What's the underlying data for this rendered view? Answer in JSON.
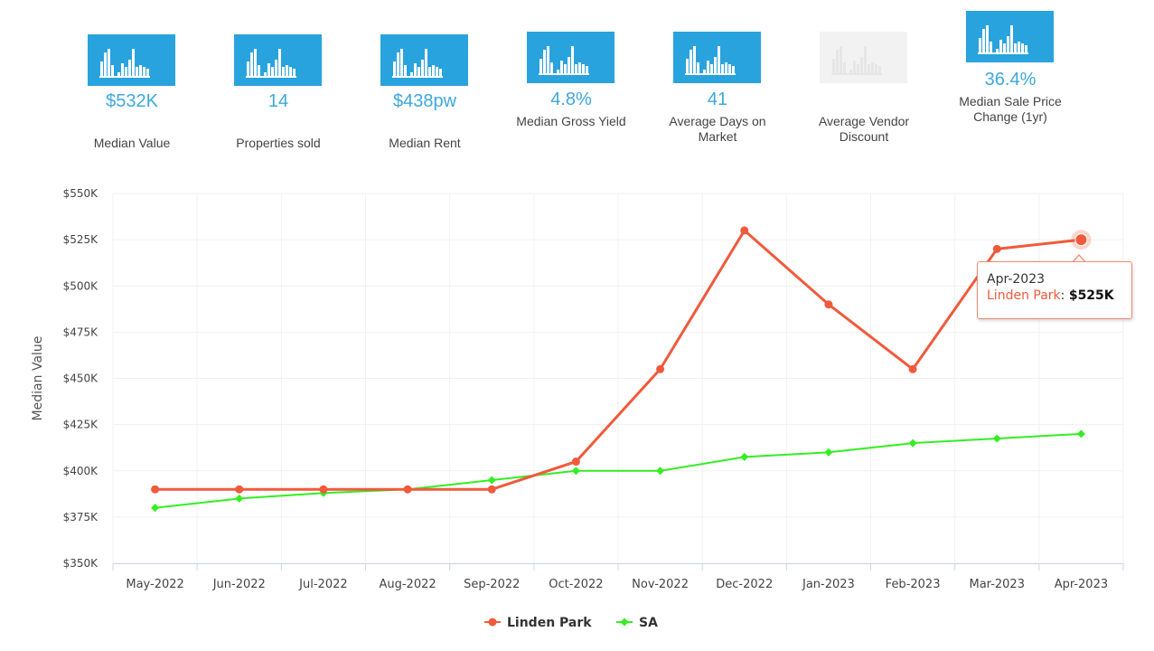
{
  "stats": [
    {
      "value": "$532K",
      "label": "Median Value",
      "active": true
    },
    {
      "value": "14",
      "label": "Properties sold",
      "active": true
    },
    {
      "value": "$438pw",
      "label": "Median Rent",
      "active": true
    },
    {
      "value": "4.8%",
      "label": "Median Gross Yield",
      "active": true
    },
    {
      "value": "41",
      "label": "Average Days on Market",
      "active": true
    },
    {
      "value": "",
      "label": "Average Vendor Discount",
      "active": false
    },
    {
      "value": "36.4%",
      "label": "Median Sale Price Change (1yr)",
      "active": true
    }
  ],
  "colors": {
    "accent": "#3ea8dd",
    "icon_bg": "#29a3dd",
    "icon_bg_inactive": "#f2f2f2",
    "linden_park": "#f05a3c",
    "sa": "#33ee22"
  },
  "chart_data": {
    "type": "line",
    "categories": [
      "May-2022",
      "Jun-2022",
      "Jul-2022",
      "Aug-2022",
      "Sep-2022",
      "Oct-2022",
      "Nov-2022",
      "Dec-2022",
      "Jan-2023",
      "Feb-2023",
      "Mar-2023",
      "Apr-2023"
    ],
    "series": [
      {
        "name": "Linden Park",
        "color": "#f05a3c",
        "values": [
          390000,
          390000,
          390000,
          390000,
          390000,
          405000,
          455000,
          530000,
          490000,
          455000,
          520000,
          525000
        ]
      },
      {
        "name": "SA",
        "color": "#33ee22",
        "values": [
          380000,
          385000,
          388000,
          390000,
          395000,
          400000,
          400000,
          407500,
          410000,
          415000,
          417500,
          420000
        ]
      }
    ],
    "ylabel": "Median Value",
    "ylim": [
      350000,
      550000
    ],
    "yticks": [
      "$350K",
      "$375K",
      "$400K",
      "$425K",
      "$450K",
      "$475K",
      "$500K",
      "$525K",
      "$550K"
    ],
    "grid": true,
    "legend": "bottom-center",
    "tooltip": {
      "category": "Apr-2023",
      "series": "Linden Park",
      "value": "$525K"
    }
  }
}
